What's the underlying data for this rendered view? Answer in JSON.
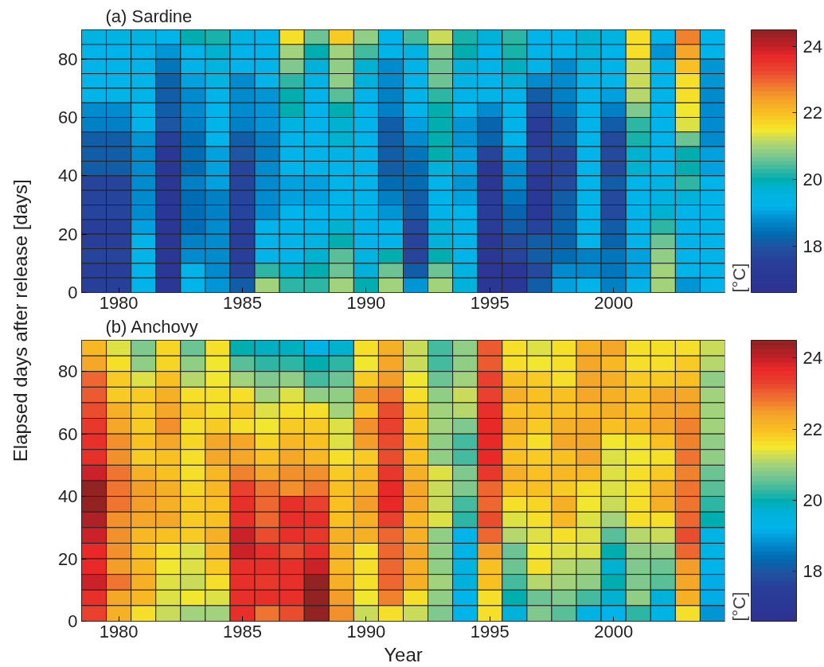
{
  "chart_data": [
    {
      "type": "heatmap",
      "title": "(a) Sardine",
      "ylabel": "Elapsed days after release [days]",
      "clabel": "[°C]",
      "x": [
        1979,
        1980,
        1981,
        1982,
        1983,
        1984,
        1985,
        1986,
        1987,
        1988,
        1989,
        1990,
        1991,
        1992,
        1993,
        1994,
        1995,
        1996,
        1997,
        1998,
        1999,
        2000,
        2001,
        2002,
        2003,
        2004
      ],
      "y": [
        87.5,
        82.5,
        77.5,
        72.5,
        67.5,
        62.5,
        57.5,
        52.5,
        47.5,
        42.5,
        37.5,
        32.5,
        27.5,
        22.5,
        17.5,
        12.5,
        7.5,
        2.5
      ],
      "xlim": [
        1978.5,
        2004.5
      ],
      "ylim": [
        0,
        90
      ],
      "xticks": [
        1980,
        1985,
        1990,
        1995,
        2000
      ],
      "yticks": [
        0,
        20,
        40,
        60,
        80
      ],
      "clim": [
        16.6,
        24.5
      ],
      "cticks": [
        18,
        20,
        22,
        24
      ],
      "cells": [
        [
          19.5,
          19.5,
          19.5,
          19.2,
          20.0,
          20.1,
          19.5,
          19.2,
          21.6,
          20.6,
          21.8,
          20.9,
          19.2,
          20.4,
          21.2,
          20.1,
          19.6,
          20.3,
          19.2,
          19.2,
          19.7,
          19.5,
          21.6,
          19.2,
          22.7,
          19.2
        ],
        [
          19.2,
          19.2,
          19.2,
          18.9,
          19.2,
          19.7,
          19.2,
          19.2,
          21.0,
          20.0,
          21.0,
          20.4,
          19.2,
          19.4,
          20.7,
          20.0,
          19.2,
          20.1,
          19.2,
          19.2,
          19.6,
          19.2,
          21.6,
          18.9,
          22.4,
          19.2
        ],
        [
          19.2,
          19.2,
          19.2,
          18.5,
          19.2,
          19.5,
          19.2,
          19.2,
          20.7,
          19.6,
          20.9,
          19.8,
          18.8,
          19.2,
          20.6,
          19.6,
          19.2,
          19.9,
          19.2,
          18.8,
          19.5,
          19.2,
          21.2,
          19.2,
          22.0,
          18.9
        ],
        [
          19.2,
          19.2,
          19.2,
          18.3,
          19.0,
          19.5,
          18.8,
          19.2,
          20.2,
          19.4,
          20.8,
          19.6,
          18.8,
          19.2,
          20.6,
          19.4,
          19.2,
          19.6,
          18.8,
          18.7,
          19.2,
          19.2,
          21.2,
          19.2,
          21.6,
          18.9
        ],
        [
          19.2,
          19.2,
          19.2,
          18.2,
          18.8,
          19.2,
          18.7,
          18.9,
          20.0,
          19.2,
          20.5,
          19.2,
          18.6,
          19.2,
          20.3,
          19.2,
          19.2,
          19.2,
          18.2,
          18.6,
          19.2,
          19.0,
          21.1,
          19.2,
          21.6,
          18.8
        ],
        [
          18.8,
          18.8,
          19.2,
          18.2,
          18.8,
          19.2,
          18.7,
          18.9,
          20.0,
          19.2,
          20.0,
          19.2,
          18.6,
          19.2,
          20.0,
          19.2,
          18.8,
          19.2,
          17.8,
          18.5,
          19.2,
          18.6,
          20.7,
          19.2,
          21.5,
          18.8
        ],
        [
          18.6,
          18.6,
          19.2,
          18.0,
          18.6,
          19.2,
          18.6,
          18.9,
          19.5,
          19.2,
          19.7,
          19.2,
          18.2,
          19.0,
          20.0,
          18.9,
          18.3,
          19.2,
          17.4,
          18.2,
          19.2,
          18.2,
          20.3,
          19.2,
          21.3,
          18.8
        ],
        [
          18.2,
          18.2,
          18.9,
          17.5,
          18.4,
          19.2,
          18.2,
          18.6,
          19.2,
          19.2,
          19.7,
          19.2,
          18.2,
          18.8,
          20.0,
          18.9,
          18.3,
          19.2,
          17.4,
          18.2,
          19.2,
          17.8,
          20.1,
          19.2,
          20.6,
          18.7
        ],
        [
          18.1,
          18.1,
          18.7,
          17.0,
          18.4,
          19.0,
          18.0,
          18.6,
          19.2,
          19.2,
          19.4,
          19.2,
          18.2,
          18.5,
          20.0,
          19.0,
          17.6,
          19.0,
          17.7,
          17.7,
          19.2,
          17.8,
          19.8,
          19.2,
          20.0,
          19.0
        ],
        [
          18.1,
          18.1,
          18.7,
          17.0,
          18.4,
          19.0,
          17.7,
          18.7,
          19.2,
          19.2,
          19.2,
          19.2,
          18.2,
          18.4,
          19.6,
          19.0,
          17.0,
          18.8,
          17.4,
          17.7,
          19.2,
          17.8,
          19.8,
          19.2,
          20.0,
          19.0
        ],
        [
          17.7,
          17.7,
          18.7,
          17.0,
          18.6,
          19.0,
          17.7,
          18.7,
          19.0,
          19.0,
          19.2,
          19.2,
          18.4,
          18.4,
          19.2,
          18.9,
          17.0,
          18.8,
          17.1,
          17.8,
          19.2,
          18.2,
          19.2,
          19.5,
          20.2,
          19.2
        ],
        [
          17.7,
          17.7,
          18.7,
          17.0,
          18.4,
          18.6,
          17.7,
          18.7,
          19.0,
          19.0,
          19.2,
          19.2,
          18.6,
          18.2,
          19.2,
          19.0,
          17.4,
          18.5,
          17.1,
          18.2,
          19.2,
          17.8,
          19.2,
          19.5,
          19.6,
          19.2
        ],
        [
          17.7,
          17.7,
          18.7,
          17.0,
          18.4,
          18.6,
          17.7,
          18.7,
          19.2,
          19.2,
          19.2,
          19.2,
          18.9,
          18.2,
          19.2,
          19.2,
          17.4,
          18.3,
          17.1,
          18.2,
          19.2,
          17.8,
          19.2,
          19.8,
          19.2,
          19.2
        ],
        [
          17.5,
          17.5,
          19.0,
          17.0,
          18.4,
          18.8,
          17.5,
          19.2,
          19.2,
          19.2,
          19.8,
          19.2,
          19.2,
          17.8,
          19.6,
          19.2,
          17.4,
          18.2,
          17.7,
          18.3,
          19.2,
          18.2,
          19.2,
          20.2,
          19.2,
          19.2
        ],
        [
          17.5,
          17.5,
          19.2,
          17.0,
          18.6,
          18.8,
          17.5,
          19.2,
          19.2,
          19.5,
          20.0,
          19.2,
          19.2,
          17.7,
          19.6,
          19.2,
          17.0,
          17.8,
          18.2,
          18.3,
          19.2,
          18.3,
          19.2,
          20.6,
          19.2,
          19.2
        ],
        [
          17.7,
          17.7,
          19.2,
          17.0,
          18.8,
          18.8,
          17.5,
          19.2,
          19.2,
          19.8,
          20.5,
          19.5,
          20.0,
          17.7,
          20.0,
          19.2,
          17.0,
          17.6,
          18.2,
          18.4,
          18.6,
          18.5,
          19.0,
          20.8,
          19.2,
          19.2
        ],
        [
          17.5,
          17.5,
          19.2,
          17.0,
          19.2,
          18.8,
          17.6,
          20.2,
          19.8,
          20.0,
          20.6,
          19.6,
          20.6,
          18.2,
          20.6,
          19.5,
          16.9,
          17.0,
          17.8,
          18.8,
          18.8,
          18.5,
          19.0,
          21.0,
          19.2,
          19.2
        ],
        [
          17.5,
          17.5,
          19.2,
          17.0,
          19.2,
          18.9,
          18.1,
          21.0,
          20.3,
          20.3,
          21.0,
          20.0,
          21.0,
          18.9,
          21.0,
          19.6,
          17.0,
          17.0,
          18.2,
          19.0,
          19.2,
          18.6,
          19.2,
          21.0,
          18.9,
          19.2
        ]
      ]
    },
    {
      "type": "heatmap",
      "title": "(b) Anchovy",
      "xlabel": "Year",
      "clabel": "[°C]",
      "x": [
        1979,
        1980,
        1981,
        1982,
        1983,
        1984,
        1985,
        1986,
        1987,
        1988,
        1989,
        1990,
        1991,
        1992,
        1993,
        1994,
        1995,
        1996,
        1997,
        1998,
        1999,
        2000,
        2001,
        2002,
        2003,
        2004
      ],
      "y": [
        87.5,
        82.5,
        77.5,
        72.5,
        67.5,
        62.5,
        57.5,
        52.5,
        47.5,
        42.5,
        37.5,
        32.5,
        27.5,
        22.5,
        17.5,
        12.5,
        7.5,
        2.5
      ],
      "xlim": [
        1978.5,
        2004.5
      ],
      "ylim": [
        0,
        90
      ],
      "xticks": [
        1980,
        1985,
        1990,
        1995,
        2000
      ],
      "yticks": [
        0,
        20,
        40,
        60,
        80
      ],
      "clim": [
        16.6,
        24.5
      ],
      "cticks": [
        18,
        20,
        22,
        24
      ],
      "cells": [
        [
          22.1,
          21.4,
          20.7,
          21.7,
          20.6,
          21.6,
          20.0,
          19.9,
          19.9,
          19.4,
          19.7,
          21.6,
          22.2,
          21.2,
          20.4,
          20.8,
          23.1,
          21.6,
          21.3,
          21.6,
          22.2,
          22.3,
          21.6,
          21.6,
          21.6,
          21.2
        ],
        [
          22.4,
          21.6,
          20.9,
          21.7,
          20.8,
          21.5,
          20.5,
          20.2,
          20.3,
          20.0,
          20.2,
          21.5,
          22.3,
          21.2,
          20.4,
          20.9,
          23.1,
          21.6,
          21.5,
          21.6,
          22.3,
          22.1,
          21.6,
          21.6,
          21.8,
          21.1
        ],
        [
          22.9,
          21.8,
          21.4,
          22.0,
          21.1,
          21.5,
          21.0,
          20.7,
          20.8,
          20.4,
          20.6,
          21.9,
          22.5,
          21.5,
          20.6,
          21.0,
          23.3,
          22.0,
          21.8,
          21.6,
          22.4,
          22.2,
          21.8,
          21.9,
          22.0,
          20.9
        ],
        [
          23.1,
          21.9,
          21.9,
          22.2,
          21.6,
          21.6,
          21.6,
          21.0,
          21.3,
          20.9,
          20.8,
          22.5,
          22.8,
          21.6,
          20.9,
          21.2,
          23.3,
          22.2,
          22.0,
          22.0,
          22.4,
          22.2,
          22.0,
          22.4,
          22.3,
          21.0
        ],
        [
          23.2,
          22.2,
          21.9,
          22.4,
          21.9,
          21.6,
          21.8,
          21.3,
          21.6,
          21.6,
          21.0,
          22.0,
          23.2,
          21.8,
          21.0,
          21.1,
          23.6,
          22.0,
          22.0,
          22.0,
          22.1,
          22.2,
          22.0,
          22.3,
          22.5,
          21.0
        ],
        [
          23.5,
          22.3,
          21.9,
          22.6,
          21.6,
          21.9,
          21.6,
          21.5,
          21.9,
          21.9,
          21.3,
          22.6,
          23.3,
          21.9,
          21.0,
          20.7,
          23.7,
          22.2,
          21.8,
          22.2,
          22.3,
          22.0,
          22.1,
          22.4,
          22.7,
          21.0
        ],
        [
          23.6,
          22.6,
          22.0,
          22.3,
          21.7,
          22.4,
          22.3,
          21.7,
          22.1,
          22.0,
          21.4,
          22.5,
          23.2,
          22.0,
          20.9,
          20.4,
          23.7,
          22.0,
          21.6,
          22.3,
          22.3,
          21.5,
          21.6,
          22.0,
          22.7,
          20.8
        ],
        [
          23.6,
          22.6,
          21.8,
          22.0,
          21.6,
          22.3,
          22.4,
          22.0,
          22.3,
          22.1,
          21.6,
          21.8,
          23.2,
          22.0,
          20.9,
          20.4,
          23.7,
          22.0,
          21.8,
          22.0,
          22.3,
          21.4,
          21.5,
          21.6,
          22.8,
          20.8
        ],
        [
          23.9,
          22.8,
          22.2,
          22.0,
          21.6,
          22.1,
          22.7,
          22.4,
          22.6,
          22.6,
          21.9,
          22.1,
          23.5,
          22.2,
          21.3,
          20.7,
          23.5,
          22.2,
          22.0,
          22.1,
          22.1,
          21.4,
          21.6,
          21.8,
          22.7,
          20.6
        ],
        [
          24.4,
          22.8,
          22.5,
          22.2,
          21.7,
          22.1,
          23.3,
          22.8,
          22.6,
          22.8,
          22.0,
          22.2,
          23.7,
          22.3,
          21.2,
          20.7,
          23.0,
          22.0,
          22.0,
          21.9,
          21.6,
          21.4,
          21.6,
          22.2,
          22.8,
          20.5
        ],
        [
          24.4,
          22.8,
          22.5,
          22.2,
          21.9,
          22.0,
          23.6,
          22.9,
          23.6,
          23.3,
          22.0,
          22.5,
          23.7,
          22.3,
          21.2,
          20.4,
          23.0,
          21.6,
          21.7,
          22.2,
          21.5,
          21.2,
          21.6,
          22.2,
          22.8,
          20.3
        ],
        [
          24.2,
          22.6,
          22.4,
          22.4,
          21.8,
          22.0,
          23.6,
          22.9,
          23.6,
          23.6,
          22.0,
          22.2,
          23.3,
          22.1,
          21.3,
          20.2,
          23.2,
          21.4,
          21.6,
          22.1,
          21.4,
          21.0,
          21.6,
          21.6,
          22.9,
          20.0
        ],
        [
          24.0,
          22.6,
          22.1,
          22.0,
          21.8,
          22.2,
          23.9,
          23.2,
          23.6,
          23.5,
          22.2,
          22.2,
          23.0,
          22.2,
          20.9,
          19.3,
          22.9,
          21.1,
          21.3,
          21.6,
          21.4,
          20.5,
          21.1,
          21.2,
          23.2,
          19.4
        ],
        [
          23.7,
          22.6,
          22.0,
          21.6,
          21.3,
          22.1,
          23.9,
          23.6,
          23.2,
          23.6,
          22.2,
          21.6,
          22.9,
          22.3,
          20.8,
          19.4,
          22.5,
          20.6,
          21.5,
          21.4,
          21.3,
          20.0,
          20.9,
          20.8,
          22.9,
          19.4
        ],
        [
          23.7,
          22.5,
          22.1,
          21.5,
          21.3,
          21.8,
          23.6,
          23.6,
          23.6,
          24.0,
          22.1,
          21.6,
          22.9,
          22.2,
          20.9,
          19.5,
          22.0,
          20.6,
          21.6,
          21.1,
          21.0,
          19.7,
          20.7,
          20.6,
          22.5,
          19.2
        ],
        [
          23.9,
          22.8,
          22.2,
          21.3,
          21.2,
          21.6,
          23.6,
          23.5,
          23.6,
          24.4,
          22.2,
          21.6,
          22.9,
          22.2,
          21.0,
          19.6,
          22.0,
          20.4,
          21.1,
          21.0,
          20.8,
          20.0,
          20.7,
          20.5,
          22.4,
          19.1
        ],
        [
          23.6,
          22.4,
          22.1,
          21.3,
          21.5,
          21.4,
          23.6,
          23.6,
          23.6,
          24.4,
          22.5,
          21.5,
          22.7,
          21.6,
          20.9,
          19.3,
          21.6,
          20.0,
          20.6,
          20.7,
          20.4,
          19.7,
          20.8,
          19.6,
          22.2,
          19.1
        ],
        [
          23.3,
          22.2,
          21.6,
          21.2,
          21.0,
          21.0,
          23.6,
          22.8,
          23.2,
          24.4,
          22.6,
          21.2,
          21.6,
          21.2,
          20.7,
          19.2,
          21.6,
          19.6,
          20.7,
          20.5,
          19.5,
          19.3,
          20.3,
          19.4,
          21.6,
          18.9
        ]
      ]
    }
  ]
}
